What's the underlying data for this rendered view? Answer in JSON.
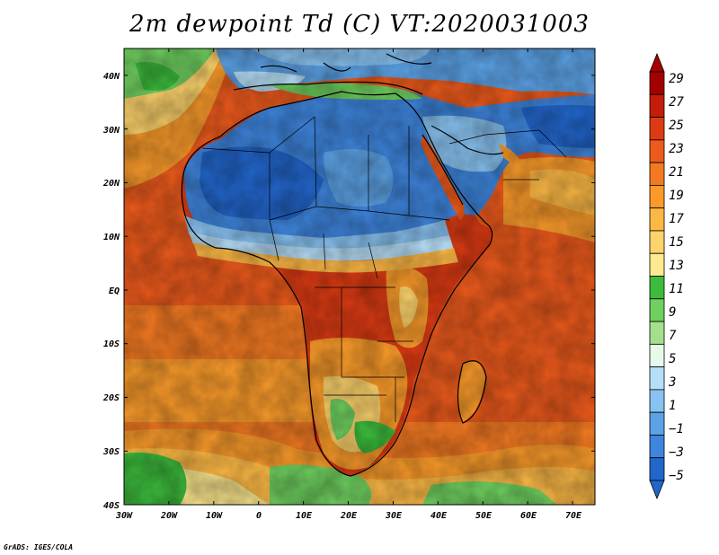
{
  "title": "2m dewpoint Td (C) VT:2020031003",
  "credit": "GrADS: IGES/COLA",
  "map": {
    "variable": "2m dewpoint",
    "units": "C",
    "valid_time": "2020031003",
    "lon_range": [
      -30,
      75
    ],
    "lat_range": [
      -40,
      45
    ],
    "lon_ticks": [
      "30W",
      "20W",
      "10W",
      "0",
      "10E",
      "20E",
      "30E",
      "40E",
      "50E",
      "60E",
      "70E"
    ],
    "lat_ticks": [
      "40N",
      "30N",
      "20N",
      "10N",
      "EQ",
      "10S",
      "20S",
      "30S",
      "40S"
    ]
  },
  "colorbar": {
    "labels": [
      "29",
      "27",
      "25",
      "23",
      "21",
      "19",
      "17",
      "15",
      "13",
      "11",
      "9",
      "7",
      "5",
      "3",
      "1",
      "−1",
      "−3",
      "−5"
    ],
    "colors": [
      "#a50000",
      "#c41e0a",
      "#dd3b13",
      "#ec5a1c",
      "#f47a22",
      "#f99a2a",
      "#fcb845",
      "#fdd36b",
      "#fde98f",
      "#3cbb3c",
      "#6fcf5f",
      "#a4e08c",
      "#e6fae8",
      "#b6def7",
      "#88c2f0",
      "#5ca2e6",
      "#3e85dd",
      "#2266cc"
    ]
  }
}
